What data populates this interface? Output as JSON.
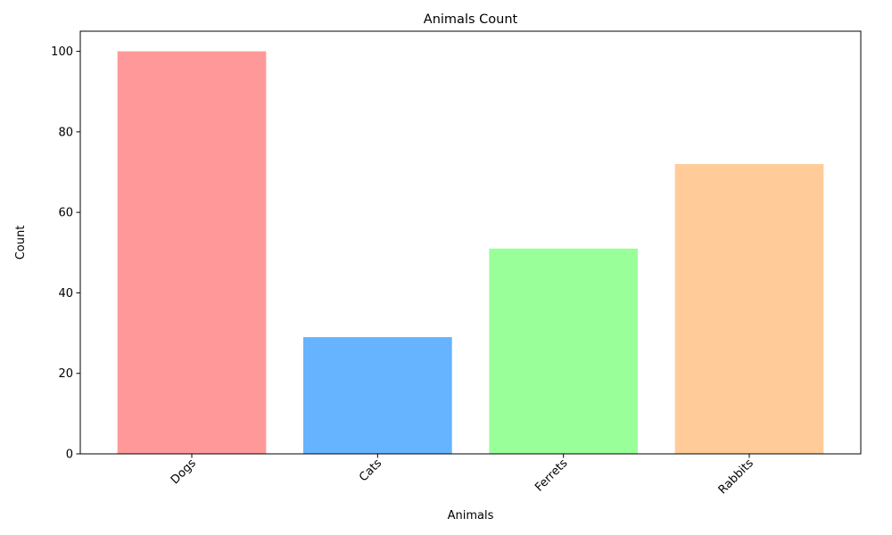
{
  "chart_data": {
    "type": "bar",
    "title": "Animals Count",
    "xlabel": "Animals",
    "ylabel": "Count",
    "categories": [
      "Dogs",
      "Cats",
      "Ferrets",
      "Rabbits"
    ],
    "values": [
      100,
      29,
      51,
      72
    ],
    "colors": [
      "#ff9999",
      "#66b3ff",
      "#99ff99",
      "#ffcc99"
    ],
    "ylim": [
      0,
      105
    ],
    "yticks": [
      0,
      20,
      40,
      60,
      80,
      100
    ],
    "x_tick_rotation_deg": 45,
    "grid": false,
    "legend": "none"
  }
}
